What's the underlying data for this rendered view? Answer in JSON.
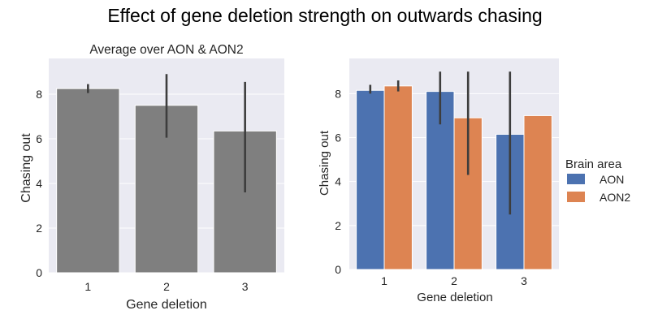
{
  "figure": {
    "title": "Effect of gene deletion strength on outwards chasing"
  },
  "chart_data": [
    {
      "type": "bar",
      "title": "Average over AON & AON2",
      "xlabel": "Gene deletion",
      "ylabel": "Chasing out",
      "categories": [
        "1",
        "2",
        "3"
      ],
      "ylim": [
        0,
        9.6
      ],
      "yticks": [
        0,
        2,
        4,
        6,
        8
      ],
      "grid": true,
      "series": [
        {
          "values": [
            8.25,
            7.5,
            6.35
          ],
          "ci_low": [
            8.05,
            6.05,
            3.6
          ],
          "ci_high": [
            8.45,
            8.9,
            8.55
          ],
          "color": "#7f7f7f"
        }
      ]
    },
    {
      "type": "bar",
      "title": "",
      "xlabel": "Gene deletion",
      "ylabel": "Chasing out",
      "categories": [
        "1",
        "2",
        "3"
      ],
      "ylim": [
        0,
        9.6
      ],
      "yticks": [
        0,
        2,
        4,
        6,
        8
      ],
      "grid": true,
      "legend": {
        "title": "Brain area",
        "placement": "outside right"
      },
      "series": [
        {
          "name": "AON",
          "values": [
            8.15,
            8.1,
            6.15
          ],
          "ci_low": [
            8.0,
            6.6,
            2.5
          ],
          "ci_high": [
            8.4,
            9.0,
            9.0
          ],
          "color": "#4c72b0"
        },
        {
          "name": "AON2",
          "values": [
            8.35,
            6.9,
            7.0
          ],
          "ci_low": [
            8.1,
            4.3,
            null
          ],
          "ci_high": [
            8.6,
            9.0,
            null
          ],
          "color": "#dd8452"
        }
      ]
    }
  ]
}
